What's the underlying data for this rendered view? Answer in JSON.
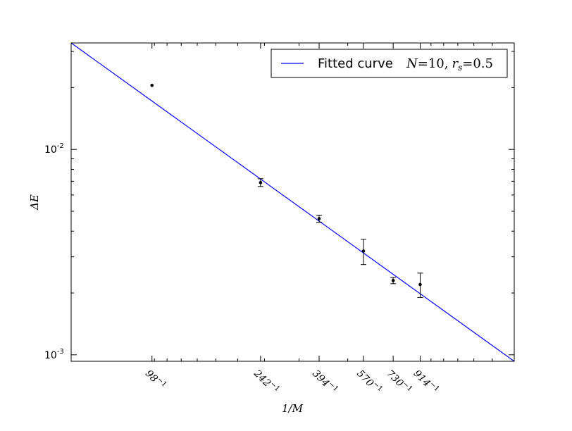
{
  "chart_data": {
    "type": "scatter",
    "xlabel": "1/M",
    "ylabel": "ΔE",
    "xscale": "log",
    "yscale": "log",
    "x_ticks": [
      {
        "M": 98,
        "label": "98"
      },
      {
        "M": 242,
        "label": "242"
      },
      {
        "M": 394,
        "label": "394"
      },
      {
        "M": 570,
        "label": "570"
      },
      {
        "M": 730,
        "label": "730"
      },
      {
        "M": 914,
        "label": "914"
      }
    ],
    "x_tick_exponent": "−1",
    "y_ticks": [
      {
        "value": 0.01,
        "base": "10",
        "exp": "-2"
      },
      {
        "value": 0.001,
        "base": "10",
        "exp": "-3"
      }
    ],
    "xlim": [
      0.0005,
      0.02
    ],
    "ylim": [
      0.00093,
      0.033
    ],
    "points": [
      {
        "M": 98,
        "y": 0.0205,
        "err": 0
      },
      {
        "M": 242,
        "y": 0.0069,
        "err": 0.0003
      },
      {
        "M": 394,
        "y": 0.0046,
        "err": 0.00018
      },
      {
        "M": 570,
        "y": 0.0032,
        "err": 0.00045
      },
      {
        "M": 730,
        "y": 0.0023,
        "err": 8e-05
      },
      {
        "M": 914,
        "y": 0.0022,
        "err": 0.0003
      }
    ],
    "series": [
      {
        "name": "Fitted curve",
        "name_math": "N=10, r_s=0.5",
        "color": "#0000ff",
        "x_start": 0.02,
        "y_start": 0.033,
        "x_end": 0.0005,
        "y_end": 0.00093
      }
    ],
    "legend": {
      "position": "top-right",
      "label_text": "Fitted curve",
      "label_math_N": "N",
      "label_math_N_val": "=10,",
      "label_math_r": "r",
      "label_math_s": "s",
      "label_math_r_val": "=0.5"
    },
    "grid": false,
    "colors": {
      "line": "#0000ff",
      "points": "#000000",
      "frame": "#000000"
    }
  }
}
